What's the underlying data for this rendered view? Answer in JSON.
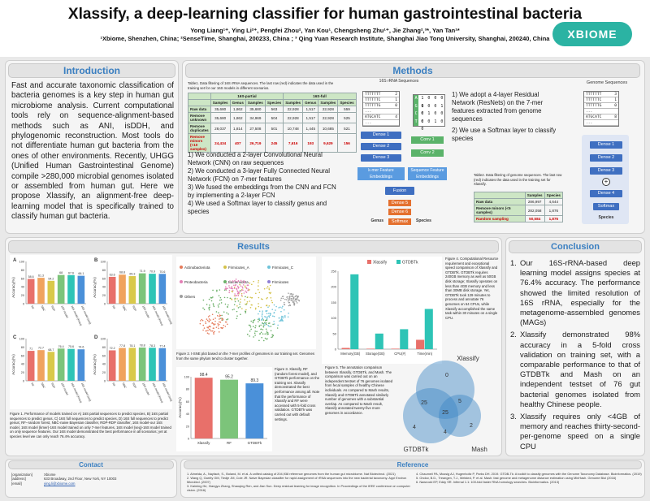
{
  "header": {
    "title": "Xlassify, a deep-learning classifier for human gastrointestinal bacteria",
    "authors": "Yong Liang¹⁺, Ying Li²⁺, Pengfei Zhou², Yan Kou¹, Chengsheng Zhu¹⁺, Jie Zhang²,³*, Yan Tan¹*",
    "affiliations": "¹Xbiome, Shenzhen, China; ²SenseTime, Shanghai, 200233, China ; ³ Qing Yuan Research Institute, Shanghai Jiao Tong University, Shanghai, 200240, China",
    "logo": "XBIOME"
  },
  "intro": {
    "title": "Introduction",
    "text": "Fast and accurate taxonomic classification of bacteria genomes is a key step in human gut microbiome analysis. Current computational tools rely on sequence-alignment-based methods such as ANI, isDDH, and phylogenomic reconstruction. Most tools do not differentiate human gut bacteria from the ones of other environments. Recently, UHGG (Unified Human Gastrointestinal Genome) compile >280,000 microbial genomes isolated or assembled from human gut. Here we propose Xlassify, an alignment-free deep-learning model that is specifically trained to classify human gut bacteria."
  },
  "methods": {
    "title": "Methods",
    "table1_caption": "Table1. Data filtering of 16S rRNA sequences. The last row (red) indicates the data used in the training set for our 16S models in different scenarios.",
    "table1": {
      "group_headers": [
        "16S-partial",
        "16S-full"
      ],
      "col_headers": [
        "Genus",
        "Species",
        "Samples",
        "Genus",
        "Species",
        "Samples"
      ],
      "rows": [
        {
          "label": "Raw data",
          "values": [
            "35,680",
            "1,862",
            "35,680",
            "563",
            "22,928",
            "1,517",
            "22,928",
            "559"
          ]
        },
        {
          "label": "Remove unknown",
          "values": [
            "35,680",
            "1,862",
            "34,969",
            "504",
            "22,928",
            "1,517",
            "22,928",
            "525"
          ]
        },
        {
          "label": "Remove duplicates",
          "values": [
            "28,037",
            "1,814",
            "27,508",
            "501",
            "10,748",
            "1,445",
            "10,685",
            "521"
          ]
        },
        {
          "label": "Remove minors (<10 samples)",
          "values": [
            "24,434",
            "407",
            "26,719",
            "245",
            "7,616",
            "193",
            "9,629",
            "156"
          ]
        }
      ],
      "col_labels": [
        "Samples",
        "Genus",
        "Samples",
        "Species",
        "Samples",
        "Genus",
        "Samples",
        "Species"
      ]
    },
    "steps16s": [
      "1) We conducted a 2-layer Convolutional Neural Network (CNN) on raw sequences",
      "2) We conducted a 3-layer Fully Connected Neural Network (FCN) on 7-mer features",
      "3) We fused the embeddings from the CNN and FCN by implementing a 2-layer FCN",
      "4) We used a Softmax layer to classify genus and species"
    ],
    "diagram16s": {
      "seq_title": "16S rRNA Sequences",
      "seqs": [
        "TTTTTTT",
        "TTTTTTC",
        "TTTTTTG",
        "...",
        "ATGCATC",
        "..."
      ],
      "counts": [
        "2",
        "1",
        "0",
        "",
        "4",
        ""
      ],
      "dense": [
        "Dense 1",
        "Dense 2",
        "Dense 3"
      ],
      "kmer": "k-mer Feature Embeddings",
      "conv": [
        "Conv 1",
        "Conv 2"
      ],
      "seqfeat": "Sequence Feature Embeddings",
      "fusion": "Fusion",
      "dense5": "Dense 5",
      "dense6": "Dense 6",
      "softmax": "Softmax",
      "genus": "Genus",
      "species": "Species",
      "onehot_letters": [
        "A",
        "G",
        "C",
        "T"
      ]
    },
    "steps_genome": [
      "1) We adopt a 4-layer Residual Network (ResNets) on the 7-mer features extracted from genome sequences",
      "2) We use a Softmax layer to classify species"
    ],
    "diagram_genome": {
      "title": "Genome Sequences",
      "seqs": [
        "TTTTTTT",
        "TTTTTTC",
        "TTTTTTG",
        "...",
        "ATGCATC",
        "..."
      ],
      "counts": [
        "3",
        "1",
        "0",
        "",
        "8",
        ""
      ],
      "dense": [
        "Dense 1",
        "Dense 2",
        "Dense 3",
        "Dense 4"
      ],
      "softmax": "Softmax",
      "species": "Species"
    },
    "table2_caption": "Table2. Data filtering of genome sequences. The last row (red) indicates the data used in the training set for Xlassify.",
    "table2": {
      "col_headers": [
        "Samples",
        "Species"
      ],
      "rows": [
        {
          "label": "Raw data",
          "values": [
            "286,997",
            "4,644"
          ]
        },
        {
          "label": "Remove minors (<5 samples)",
          "values": [
            "282,058",
            "1,876"
          ]
        },
        {
          "label": "Random sampling",
          "values": [
            "50,584",
            "1,876"
          ]
        }
      ]
    }
  },
  "results": {
    "title": "Results",
    "fig1_caption": "Figure 1. Performance of models trained on A) 16S partial sequences to predict species, B) 16S partial sequences to predict genus, C) 16S full sequences to predict species, D) 16S full sequences to predict genus; RF--random forest, NBC-naive Bayesian classifier, RDP-RDP classifier, 16S model-our 16S model, 16S model (kmer)-16S model trained on only 7-mer features, 16S model (seq)-16S model trained on only sequence features. Our 16S model demonstrated the best performance in all scenarios; yet at species level we can only reach 76.4% accuracy.",
    "fig2_caption": "Figure 2. t-SNE plot based on the 7-mer profiles of genomes in our training set. Genomes from the same phylum tend to cluster together.",
    "fig2_legend": [
      "Actinobacteriota",
      "Firmicutes_A",
      "Firmicutes_C",
      "Proteobacteria",
      "Bacteroidota",
      "Firmicutes",
      "Others"
    ],
    "fig3_caption": "Figure 3. Xlassify, RF (random forest model), and GTDBTk performance on the training set. Xlassify demonstrated the best performance among all. Note that the performance of Xlassify and RF were accessed with 5-fold cross validation. GTDBTk was carried out with default settings.",
    "fig4_caption": "Figure 4. Computational Resource requirement and exceptional speed comparison of Xlassify and GTDBTk. GTDBTk requires 240GB memory as well as 50GB disk storage; Xlassify operates on less than 4GB memory and less than 30MB disk storage. Yet, GTDBTk took 129 minutes to process and annotate 76 genomes on 64 CPUs, while Xlassify accomplished the same task within 30 minutes on a single CPU.",
    "fig5_caption": "Figure 5. The annotation comparison between Xlassify, GTDBTk, and Mash. The comparison was carried out on an independent testset of 76 genomes isolated from fecal samples of healthy Chinese individuals. As compared to Mash results, Xlassify and GTDBTk annotated similarly number of genomes with a substantial overlap. As compared to Mash result, Xlassify annotated twenty-five more genomes in accordance."
  },
  "chart_data": [
    {
      "type": "bar",
      "panel": "A",
      "categories": [
        "RF",
        "NBC",
        "RDP",
        "16S model",
        "16S model (kmer)",
        "16S model (seq)"
      ],
      "values": [
        58.6,
        61.3,
        54.2,
        68,
        67.6,
        66.1
      ],
      "ylabel": "Accuracy(%)",
      "ylim": [
        0,
        100
      ]
    },
    {
      "type": "bar",
      "panel": "B",
      "categories": [
        "RF",
        "NBC",
        "RDP",
        "16S model",
        "16S model (kmer)",
        "16S model (seq)"
      ],
      "values": [
        63.6,
        68.8,
        65.3,
        71.9,
        70.9,
        70.6
      ],
      "ylabel": "Accuracy(%)",
      "ylim": [
        0,
        100
      ]
    },
    {
      "type": "bar",
      "panel": "C",
      "categories": [
        "RF",
        "NBC",
        "RDP",
        "16S model",
        "16S model (kmer)",
        "16S model (seq)"
      ],
      "values": [
        71,
        72.7,
        68.7,
        76.4,
        75.6,
        74.6
      ],
      "ylabel": "Accuracy(%)",
      "ylim": [
        0,
        100
      ]
    },
    {
      "type": "bar",
      "panel": "D",
      "categories": [
        "RF",
        "NBC",
        "RDP",
        "16S model",
        "16S model (kmer)",
        "16S model (seq)"
      ],
      "values": [
        72.2,
        77.8,
        78.1,
        78.8,
        78.3,
        77.4
      ],
      "ylabel": "Accuracy(%)",
      "ylim": [
        0,
        100
      ]
    },
    {
      "type": "bar",
      "panel": "fig3",
      "categories": [
        "Xlassify",
        "RF",
        "GTDBTk"
      ],
      "values": [
        98.4,
        95.2,
        89.3
      ],
      "ylabel": "Accuracy(%)",
      "ylim": [
        0,
        100
      ]
    },
    {
      "type": "bar",
      "panel": "fig4",
      "categories": [
        "Memory(GB)",
        "Storage(GB)",
        "CPU(#)",
        "Time(min)"
      ],
      "series": [
        {
          "name": "Xlassify",
          "values": [
            4,
            0.03,
            1,
            30
          ]
        },
        {
          "name": "GTDBTk",
          "values": [
            240,
            50,
            64,
            129
          ]
        }
      ],
      "ylim": [
        0,
        250
      ],
      "yticks": [
        0,
        50,
        100,
        150,
        200,
        250
      ]
    },
    {
      "type": "venn",
      "panel": "fig5",
      "sets": [
        "Xlassify",
        "GTDBTk",
        "Mash"
      ],
      "regions": {
        "X_only": "0",
        "G_only": "4",
        "M_only": "2",
        "XG": "25",
        "XM": "5",
        "GM": "4",
        "XGM": "25"
      }
    }
  ],
  "conclusion": {
    "title": "Conclusion",
    "items": [
      "Our 16S-rRNA-based deep learning model assigns species at 76.4% accuracy. The performance showed the limited resolution of 16S rRNA, especially for the metagenome-assembled genomes (MAGs)",
      "Xlassify demonstrated 98% accuracy in a 5-fold cross validation on training set, with a comparable performance to that of GTDBTk and Mash on an independent testset of 76 gut bacterial genomes isolated from healthy Chinese people.",
      "Xlassify requires only <4GB of memory and reaches thirty-second-per-genome speed on a single CPU"
    ]
  },
  "contact": {
    "title": "Contact",
    "rows": [
      {
        "k": "[organization]",
        "v": "Xbiome"
      },
      {
        "k": "[address]",
        "v": "633 Broadway, 2nd Floor, New York, NY 10003"
      },
      {
        "k": "[email]",
        "v": "ying.li@xbiome.com"
      }
    ]
  },
  "reference": {
    "title": "Reference",
    "left": [
      "1. Almeida, A., Nayfach, S., Boland, M. et al. A unified catalog of 204,938 reference genomes from the human gut microbiome. Nat Biotechnol. (2021)",
      "2. Wang Q, Garrity GM, Tiedje JM, Cole JR. Naive Bayesian classifier for rapid assignment of rRNA sequences into the new bacterial taxonomy. Appl Environ Microbiol. (2007)",
      "3. Kaiming He, Xiangyu Zhang, Shaoqing Ren, and Jian Sun. Deep residual learning for image recognition. In Proceedings of the IEEE conference on computer vision. (2016)"
    ],
    "right": [
      "4. Chaumeil PA, Mussig AJ, Hugenholtz P, Parks DH. 2019. GTDB-Tk: A toolkit to classify genomes with the Genome Taxonomy Database. Bioinformatics. (2019)",
      "5. Ondov, B.D., Treangen, T.J., Melsted, P. et al. Mash: fast genome and metagenome distance estimation using MinHash. Genome Biol (2016)",
      "6. Nawrocki EP, Eddy SR. Infernal 1.1: 100-fold faster RNA homology searches. Bioinformatics. (2013)"
    ]
  },
  "colors": {
    "accent": "#3a7fc1",
    "teal": "#2bb3a3",
    "bar_red": "#e8706a",
    "bar_teal": "#2ec4b6",
    "bar_green": "#7cc47a",
    "bar_blue": "#4a90d9",
    "venn": "#3f88c5"
  }
}
